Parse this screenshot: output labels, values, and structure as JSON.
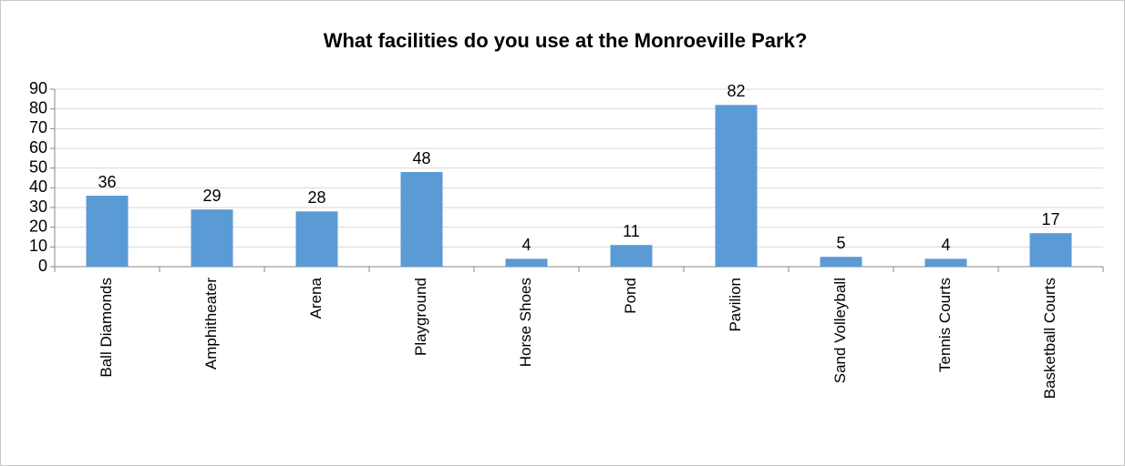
{
  "chart_data": {
    "type": "bar",
    "title": "What facilities do you use at the Monroeville Park?",
    "categories": [
      "Ball Diamonds",
      "Amphitheater",
      "Arena",
      "Playground",
      "Horse Shoes",
      "Pond",
      "Pavilion",
      "Sand Volleyball",
      "Tennis Courts",
      "Basketball Courts"
    ],
    "values": [
      36,
      29,
      28,
      48,
      4,
      11,
      82,
      5,
      4,
      17
    ],
    "color": "#5b9bd5",
    "ylim": [
      0,
      90
    ],
    "yticks": [
      0,
      10,
      20,
      30,
      40,
      50,
      60,
      70,
      80,
      90
    ],
    "grid": true
  }
}
